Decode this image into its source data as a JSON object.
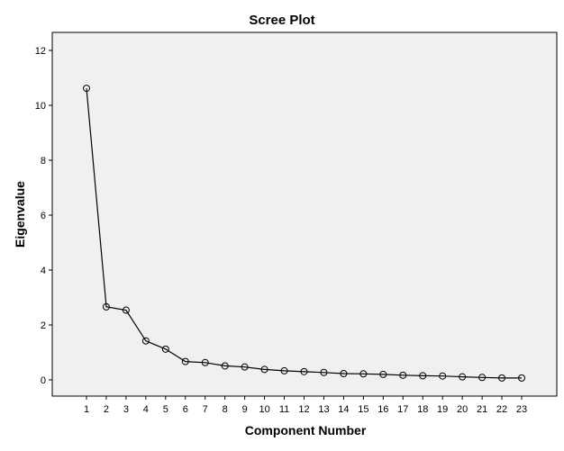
{
  "chart_data": {
    "type": "line",
    "title": "Scree Plot",
    "xlabel": "Component Number",
    "ylabel": "Eigenvalue",
    "x": [
      1,
      2,
      3,
      4,
      5,
      6,
      7,
      8,
      9,
      10,
      11,
      12,
      13,
      14,
      15,
      16,
      17,
      18,
      19,
      20,
      21,
      22,
      23
    ],
    "y": [
      10.62,
      2.66,
      2.54,
      1.42,
      1.12,
      0.67,
      0.63,
      0.51,
      0.47,
      0.38,
      0.33,
      0.3,
      0.27,
      0.23,
      0.22,
      0.2,
      0.17,
      0.15,
      0.14,
      0.11,
      0.09,
      0.07,
      0.07
    ],
    "xlim": [
      1,
      23
    ],
    "ylim": [
      -0.6,
      12.5
    ],
    "yticks": [
      0,
      2,
      4,
      6,
      8,
      10,
      12
    ],
    "xtick_labels": [
      "1",
      "2",
      "3",
      "4",
      "5",
      "6",
      "7",
      "8",
      "9",
      "10",
      "11",
      "12",
      "13",
      "14",
      "15",
      "16",
      "17",
      "18",
      "19",
      "20",
      "21",
      "22",
      "23"
    ],
    "ytick_labels": [
      "0",
      "2",
      "4",
      "6",
      "8",
      "10",
      "12"
    ],
    "grid": false,
    "marker": "open-circle",
    "plot_background": "#f0f0f0",
    "line_color": "#000000"
  }
}
